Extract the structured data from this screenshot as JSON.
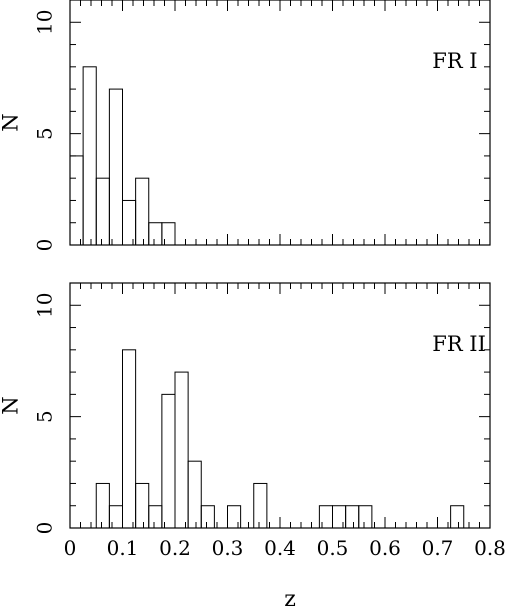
{
  "chart_data": [
    {
      "type": "bar",
      "subtype": "histogram",
      "panel_label": "FR I",
      "xlabel": "",
      "ylabel": "N",
      "xlim": [
        0,
        0.8
      ],
      "ylim": [
        0,
        11
      ],
      "bin_width": 0.025,
      "x_ticks": [],
      "y_ticks": [
        "0",
        "5",
        "10"
      ],
      "bins": [
        {
          "x0": 0.0,
          "count": 4
        },
        {
          "x0": 0.025,
          "count": 8
        },
        {
          "x0": 0.05,
          "count": 3
        },
        {
          "x0": 0.075,
          "count": 7
        },
        {
          "x0": 0.1,
          "count": 2
        },
        {
          "x0": 0.125,
          "count": 3
        },
        {
          "x0": 0.15,
          "count": 1
        },
        {
          "x0": 0.175,
          "count": 1
        }
      ]
    },
    {
      "type": "bar",
      "subtype": "histogram",
      "panel_label": "FR II",
      "xlabel": "z",
      "ylabel": "N",
      "xlim": [
        0,
        0.8
      ],
      "ylim": [
        0,
        11
      ],
      "bin_width": 0.025,
      "x_ticks": [
        "0",
        "0.1",
        "0.2",
        "0.3",
        "0.4",
        "0.5",
        "0.6",
        "0.7",
        "0.8"
      ],
      "y_ticks": [
        "0",
        "5",
        "10"
      ],
      "bins": [
        {
          "x0": 0.05,
          "count": 2
        },
        {
          "x0": 0.075,
          "count": 1
        },
        {
          "x0": 0.1,
          "count": 8
        },
        {
          "x0": 0.125,
          "count": 2
        },
        {
          "x0": 0.15,
          "count": 1
        },
        {
          "x0": 0.175,
          "count": 6
        },
        {
          "x0": 0.2,
          "count": 7
        },
        {
          "x0": 0.225,
          "count": 3
        },
        {
          "x0": 0.25,
          "count": 1
        },
        {
          "x0": 0.3,
          "count": 1
        },
        {
          "x0": 0.35,
          "count": 2
        },
        {
          "x0": 0.475,
          "count": 1
        },
        {
          "x0": 0.5,
          "count": 1
        },
        {
          "x0": 0.525,
          "count": 1
        },
        {
          "x0": 0.55,
          "count": 1
        },
        {
          "x0": 0.725,
          "count": 1
        }
      ]
    }
  ]
}
